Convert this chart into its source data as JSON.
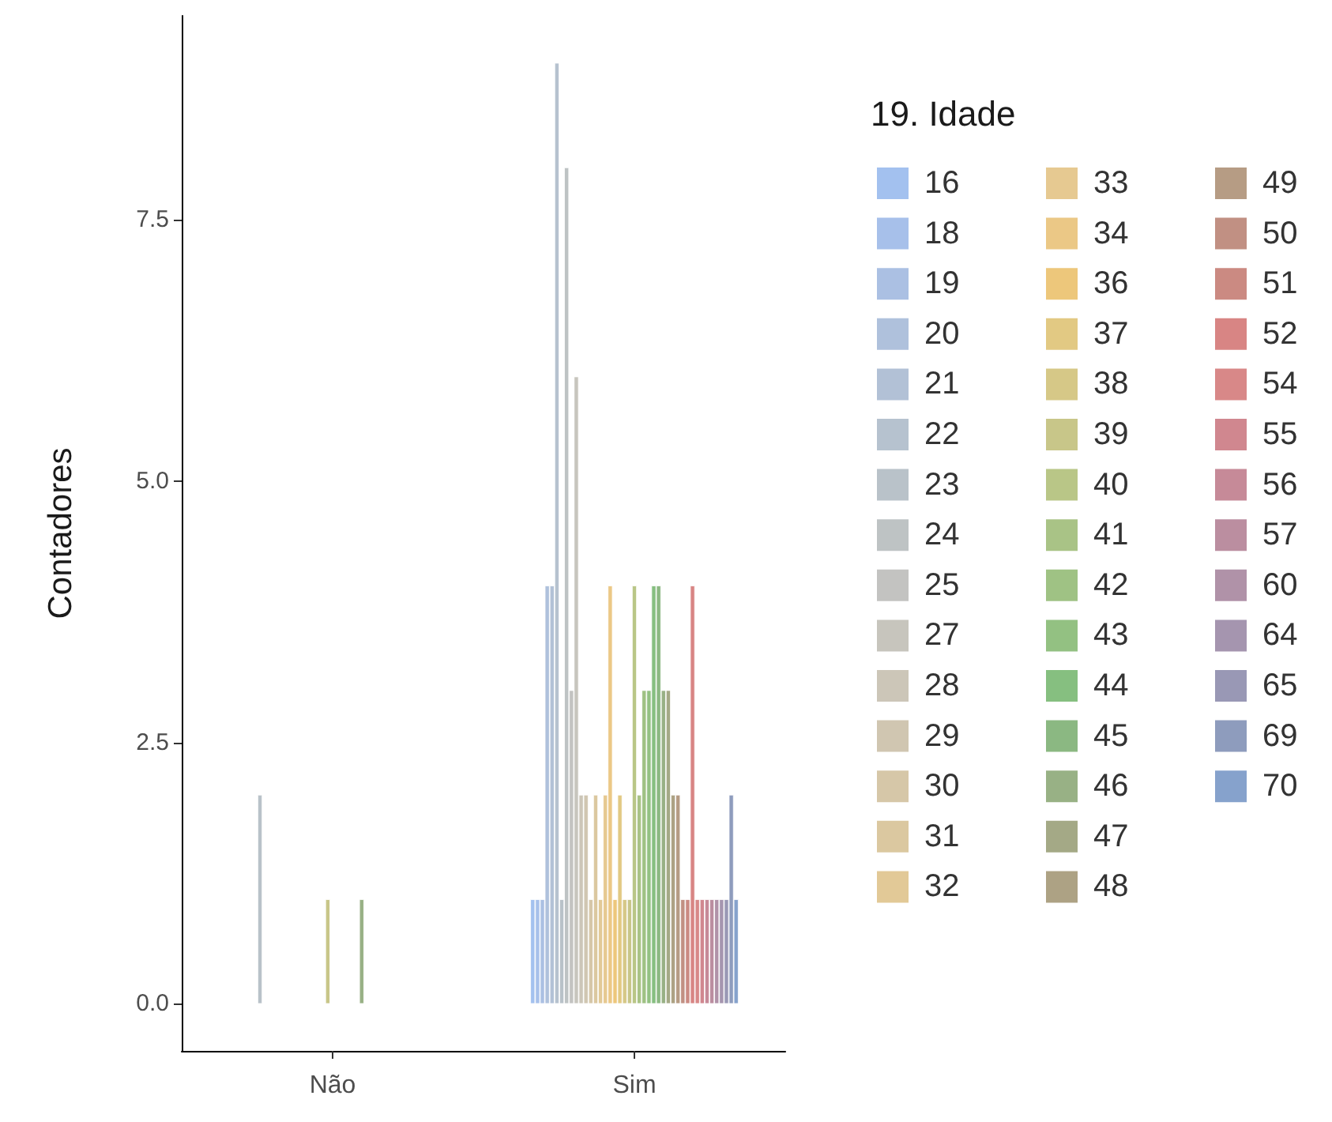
{
  "chart_data": {
    "type": "bar",
    "ylabel": "Contadores",
    "legend_title": "19. Idade",
    "legend": "right",
    "grid": false,
    "categories": [
      "Não",
      "Sim"
    ],
    "ylim": [
      -0.45,
      9.45
    ],
    "yticks": [
      {
        "value": 0,
        "label": "0.0"
      },
      {
        "value": 2.5,
        "label": "2.5"
      },
      {
        "value": 5,
        "label": "5.0"
      },
      {
        "value": 7.5,
        "label": "7.5"
      }
    ],
    "series": [
      {
        "name": "16",
        "color": "#a3c1ef",
        "values": [
          null,
          1
        ]
      },
      {
        "name": "18",
        "color": "#a7c0ea",
        "values": [
          null,
          1
        ]
      },
      {
        "name": "19",
        "color": "#abc0e3",
        "values": [
          null,
          1
        ]
      },
      {
        "name": "20",
        "color": "#afc1dc",
        "values": [
          null,
          4
        ]
      },
      {
        "name": "21",
        "color": "#b2c1d6",
        "values": [
          null,
          4
        ]
      },
      {
        "name": "22",
        "color": "#b6c2cf",
        "values": [
          null,
          9
        ]
      },
      {
        "name": "23",
        "color": "#b9c2c9",
        "values": [
          2,
          1
        ]
      },
      {
        "name": "24",
        "color": "#bec3c4",
        "values": [
          null,
          8
        ]
      },
      {
        "name": "25",
        "color": "#c3c3c1",
        "values": [
          null,
          3
        ]
      },
      {
        "name": "27",
        "color": "#c7c5bd",
        "values": [
          null,
          6
        ]
      },
      {
        "name": "28",
        "color": "#ccc6b8",
        "values": [
          null,
          2
        ]
      },
      {
        "name": "29",
        "color": "#d0c6b1",
        "values": [
          null,
          2
        ]
      },
      {
        "name": "30",
        "color": "#d6c7a8",
        "values": [
          null,
          1
        ]
      },
      {
        "name": "31",
        "color": "#dbc8a0",
        "values": [
          null,
          2
        ]
      },
      {
        "name": "32",
        "color": "#e2c997",
        "values": [
          null,
          1
        ]
      },
      {
        "name": "33",
        "color": "#e6c991",
        "values": [
          null,
          2
        ]
      },
      {
        "name": "34",
        "color": "#ebc886",
        "values": [
          null,
          4
        ]
      },
      {
        "name": "36",
        "color": "#edc77b",
        "values": [
          null,
          1
        ]
      },
      {
        "name": "37",
        "color": "#e2c983",
        "values": [
          null,
          2
        ]
      },
      {
        "name": "38",
        "color": "#d6c887",
        "values": [
          null,
          1
        ]
      },
      {
        "name": "39",
        "color": "#c8c689",
        "values": [
          1,
          1
        ]
      },
      {
        "name": "40",
        "color": "#b9c687",
        "values": [
          null,
          4
        ]
      },
      {
        "name": "41",
        "color": "#a9c386",
        "values": [
          null,
          2
        ]
      },
      {
        "name": "42",
        "color": "#9fc284",
        "values": [
          null,
          3
        ]
      },
      {
        "name": "43",
        "color": "#93c182",
        "values": [
          null,
          3
        ]
      },
      {
        "name": "44",
        "color": "#86bf80",
        "values": [
          null,
          4
        ]
      },
      {
        "name": "45",
        "color": "#8bb882",
        "values": [
          null,
          4
        ]
      },
      {
        "name": "46",
        "color": "#98b185",
        "values": [
          1,
          3
        ]
      },
      {
        "name": "47",
        "color": "#a4a986",
        "values": [
          null,
          3
        ]
      },
      {
        "name": "48",
        "color": "#ada284",
        "values": [
          null,
          2
        ]
      },
      {
        "name": "49",
        "color": "#b69c84",
        "values": [
          null,
          2
        ]
      },
      {
        "name": "50",
        "color": "#c19083",
        "values": [
          null,
          1
        ]
      },
      {
        "name": "51",
        "color": "#cb8a82",
        "values": [
          null,
          1
        ]
      },
      {
        "name": "52",
        "color": "#d88584",
        "values": [
          null,
          4
        ]
      },
      {
        "name": "54",
        "color": "#d88888",
        "values": [
          null,
          1
        ]
      },
      {
        "name": "55",
        "color": "#d0878f",
        "values": [
          null,
          1
        ]
      },
      {
        "name": "56",
        "color": "#c68a98",
        "values": [
          null,
          1
        ]
      },
      {
        "name": "57",
        "color": "#bb8ea0",
        "values": [
          null,
          1
        ]
      },
      {
        "name": "60",
        "color": "#b092a8",
        "values": [
          null,
          1
        ]
      },
      {
        "name": "64",
        "color": "#a595af",
        "values": [
          null,
          1
        ]
      },
      {
        "name": "65",
        "color": "#9998b5",
        "values": [
          null,
          1
        ]
      },
      {
        "name": "69",
        "color": "#8e9cbd",
        "values": [
          null,
          2
        ]
      },
      {
        "name": "70",
        "color": "#86a2cc",
        "values": [
          null,
          1
        ]
      }
    ]
  }
}
